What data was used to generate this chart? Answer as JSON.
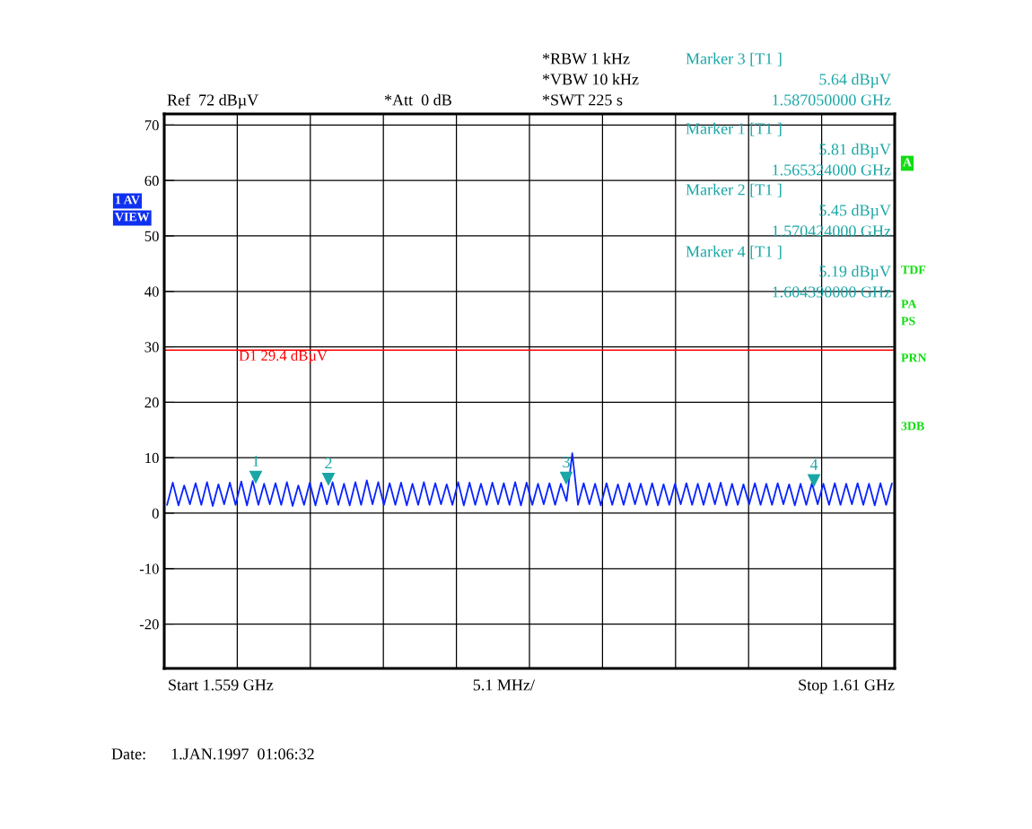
{
  "chart_data": {
    "type": "line",
    "categories": [
      null,
      null,
      null,
      null,
      null,
      null,
      null,
      null,
      null,
      null,
      null,
      null,
      null,
      null,
      null,
      null,
      null,
      null,
      null,
      null,
      null,
      null,
      null,
      null,
      null,
      null,
      null,
      null,
      null,
      null,
      null,
      null,
      null,
      null,
      null,
      null,
      null,
      null,
      null,
      null,
      null,
      null,
      null,
      null,
      null,
      null,
      null,
      null,
      null,
      null,
      null,
      null,
      null,
      null,
      null,
      null,
      null,
      null,
      null,
      null,
      null,
      null,
      null,
      null,
      null,
      null,
      null,
      null,
      null,
      null,
      null,
      null,
      null,
      null,
      null,
      null,
      null,
      null,
      null,
      null,
      null,
      null,
      null,
      null,
      null,
      null,
      null,
      null,
      null,
      null,
      null,
      null,
      null,
      null,
      null,
      null,
      null,
      null,
      null,
      null,
      null,
      null,
      null,
      null,
      null,
      null,
      null,
      null,
      null,
      null,
      null,
      null,
      null,
      null,
      null,
      null,
      null,
      null,
      null,
      null,
      null,
      null,
      null,
      null,
      null,
      null,
      null,
      null
    ],
    "ylim": [
      -28,
      72
    ],
    "yticks": [
      -20,
      -10,
      0,
      10,
      20,
      30,
      40,
      50,
      60,
      70
    ],
    "grid": true,
    "line_style": "solid",
    "series": [
      {
        "color": "#0a24ff",
        "values": [
          1.5,
          5.5,
          1.4,
          5.0,
          1.6,
          5.4,
          1.5,
          5.6,
          1.3,
          5.2,
          1.6,
          5.5,
          1.5,
          5.7,
          1.4,
          5.8,
          1.5,
          5.3,
          1.6,
          5.4,
          1.5,
          5.6,
          1.3,
          5.0,
          1.5,
          5.5,
          1.4,
          5.5,
          1.6,
          5.6,
          1.5,
          5.3,
          1.4,
          5.6,
          1.5,
          5.9,
          1.6,
          5.6,
          1.5,
          5.4,
          1.5,
          5.5,
          1.4,
          5.3,
          1.5,
          5.6,
          1.5,
          5.4,
          1.6,
          5.2,
          1.5,
          5.6,
          1.4,
          5.5,
          1.5,
          5.3,
          1.5,
          5.5,
          1.6,
          5.4,
          1.5,
          5.6,
          1.4,
          5.5,
          1.5,
          5.3,
          1.6,
          5.4,
          1.5,
          5.3,
          2.2,
          10.8,
          1.5,
          5.4,
          1.6,
          5.3,
          1.4,
          5.4,
          1.5,
          5.2,
          1.5,
          5.4,
          1.6,
          5.3,
          1.5,
          5.4,
          1.4,
          5.2,
          1.5,
          5.3,
          1.6,
          5.4,
          1.5,
          5.3,
          1.5,
          5.4,
          1.6,
          5.5,
          1.4,
          5.3,
          1.5,
          5.2,
          1.6,
          5.4,
          1.5,
          5.3,
          1.5,
          5.4,
          1.6,
          5.2,
          1.4,
          5.3,
          1.5,
          5.4,
          1.6,
          5.3,
          1.5,
          5.4,
          1.5,
          5.3,
          1.6,
          5.4,
          1.5,
          5.3,
          1.4,
          5.4,
          1.5,
          5.3
        ]
      }
    ],
    "ref_lines": [
      {
        "axis": "y",
        "value": 29.4,
        "label": "D1 29.4 dBµV",
        "color": "#ff0000"
      }
    ],
    "annotations": [
      "Ref  72 dBµV",
      "*Att  0 dB",
      "*RBW 1 kHz",
      "*VBW 10 kHz",
      "*SWT 225 s",
      "Marker 3 [T1 ]",
      "5.64 dBµV",
      "1.587050000 GHz",
      "Marker 1 [T1 ]",
      "5.81 dBµV",
      "1.565324000 GHz",
      "Marker 2 [T1 ]",
      "5.45 dBµV",
      "1.570424000 GHz",
      "Marker 4 [T1 ]",
      "5.19 dBµV",
      "1.604390000 GHz",
      "1 AV",
      "VIEW",
      "A",
      "TDF",
      "PA",
      "PS",
      "PRN",
      "3DB",
      "Start 1.559 GHz",
      "5.1 MHz/",
      "Stop 1.61 GHz",
      "Date:      1.JAN.1997  01:06:32",
      {
        "text": "1",
        "y": 5.81
      },
      {
        "text": "2",
        "y": 5.45
      },
      {
        "text": "3",
        "y": 5.64
      },
      {
        "text": "4",
        "y": 5.19
      }
    ]
  }
}
